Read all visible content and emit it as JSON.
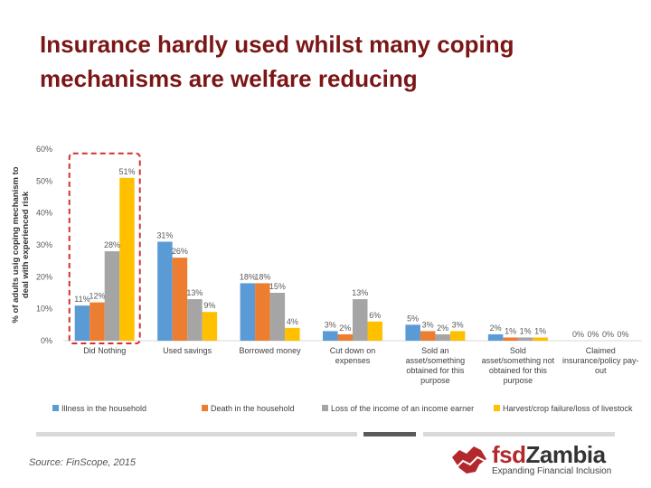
{
  "slide": {
    "title_line1": "Insurance hardly used whilst many coping",
    "title_line2": "mechanisms are welfare reducing",
    "source": "Source: FinScope, 2015"
  },
  "logo": {
    "brand_prefix": "fsd",
    "brand_suffix": "Zambia",
    "tagline": "Expanding Financial Inclusion"
  },
  "colors": {
    "title": "#7a1616",
    "illness": "#5b9bd5",
    "death": "#ed7d31",
    "loss": "#a5a5a5",
    "harvest": "#ffc000",
    "highlight": "#d32f2f",
    "brand_red": "#b3282d",
    "brand_dark": "#333333"
  },
  "chart_data": {
    "type": "bar",
    "ylabel": "% of adults usig coping mechanism to deal with experienced risk",
    "ylim": [
      0,
      60
    ],
    "yticks": [
      "0%",
      "10%",
      "20%",
      "30%",
      "40%",
      "50%",
      "60%"
    ],
    "categories": [
      [
        "Did Nothing"
      ],
      [
        "Used savings"
      ],
      [
        "Borrowed money"
      ],
      [
        "Cut down on",
        "expenses"
      ],
      [
        "Sold an",
        "asset/something",
        "obtained for this",
        "purpose"
      ],
      [
        "Sold",
        "asset/something not",
        "obtained for this",
        "purpose"
      ],
      [
        "Claimed",
        "insurance/policy pay-",
        "out"
      ]
    ],
    "highlighted_category": "Did Nothing",
    "series": [
      {
        "name": "Illness in the household",
        "color": "#5b9bd5",
        "values": [
          11,
          31,
          18,
          3,
          5,
          2,
          0
        ]
      },
      {
        "name": "Death in the household",
        "color": "#ed7d31",
        "values": [
          12,
          26,
          18,
          2,
          3,
          1,
          0
        ]
      },
      {
        "name": "Loss of the income of an income earner",
        "color": "#a5a5a5",
        "values": [
          28,
          13,
          15,
          13,
          2,
          1,
          0
        ]
      },
      {
        "name": "Harvest/crop failure/loss of livestock",
        "color": "#ffc000",
        "values": [
          51,
          9,
          4,
          6,
          3,
          1,
          0
        ]
      }
    ]
  }
}
